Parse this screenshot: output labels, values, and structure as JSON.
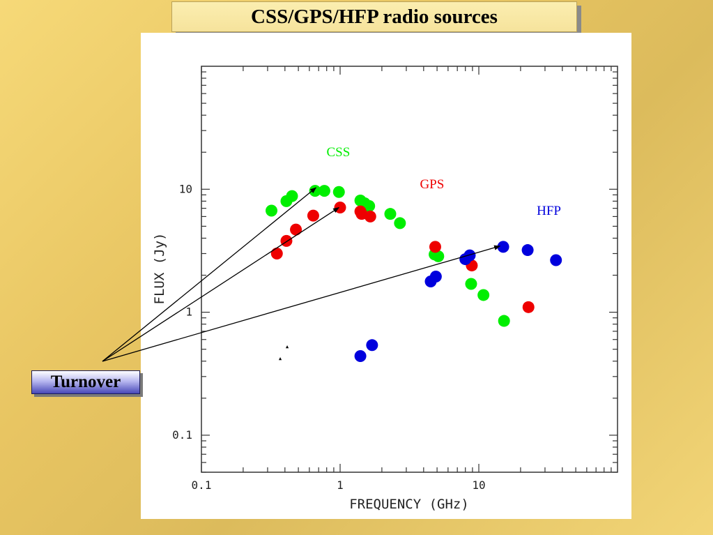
{
  "slide": {
    "title": "CSS/GPS/HFP radio sources",
    "callout": "Turnover"
  },
  "colors": {
    "CSS": "#00ee00",
    "GPS": "#ee0000",
    "HFP": "#0000dd",
    "arrow": "#000000"
  },
  "chart_data": {
    "type": "scatter",
    "xlabel": "FREQUENCY (GHz)",
    "ylabel": "FLUX (Jy)",
    "xscale": "log",
    "yscale": "log",
    "xlim": [
      0.1,
      100
    ],
    "ylim": [
      0.05,
      100
    ],
    "xticklabels": [
      {
        "v": 0.1,
        "t": "0.1"
      },
      {
        "v": 1,
        "t": "1"
      },
      {
        "v": 10,
        "t": "10"
      }
    ],
    "yticklabels": [
      {
        "v": 0.1,
        "t": "0.1"
      },
      {
        "v": 1,
        "t": "1"
      },
      {
        "v": 10,
        "t": "10"
      }
    ],
    "grid": false,
    "series": [
      {
        "name": "CSS",
        "color": "#00ee00",
        "points": [
          [
            0.32,
            6.7
          ],
          [
            0.41,
            8.0
          ],
          [
            0.45,
            8.8
          ],
          [
            0.66,
            9.7
          ],
          [
            0.77,
            9.7
          ],
          [
            0.98,
            9.5
          ],
          [
            1.4,
            8.1
          ],
          [
            1.5,
            7.7
          ],
          [
            1.62,
            7.3
          ],
          [
            2.3,
            6.3
          ],
          [
            2.7,
            5.3
          ],
          [
            4.8,
            2.95
          ],
          [
            5.1,
            2.85
          ],
          [
            8.8,
            1.7
          ],
          [
            10.8,
            1.38
          ],
          [
            15.2,
            0.85
          ]
        ]
      },
      {
        "name": "GPS",
        "color": "#ee0000",
        "points": [
          [
            0.35,
            3.0
          ],
          [
            0.41,
            3.8
          ],
          [
            0.48,
            4.7
          ],
          [
            0.64,
            6.1
          ],
          [
            1.0,
            7.1
          ],
          [
            1.4,
            6.6
          ],
          [
            1.43,
            6.3
          ],
          [
            1.65,
            6.0
          ],
          [
            4.85,
            3.4
          ],
          [
            8.9,
            2.4
          ],
          [
            22.8,
            1.1
          ]
        ]
      },
      {
        "name": "HFP",
        "color": "#0000dd",
        "points": [
          [
            1.4,
            0.44
          ],
          [
            1.7,
            0.54
          ],
          [
            4.5,
            1.78
          ],
          [
            4.9,
            1.95
          ],
          [
            8.0,
            2.7
          ],
          [
            8.6,
            2.9
          ],
          [
            15.0,
            3.4
          ],
          [
            22.5,
            3.2
          ],
          [
            36.0,
            2.65
          ]
        ]
      }
    ],
    "annotations": [
      {
        "text": "CSS",
        "x": 0.97,
        "y": 18.5,
        "color": "#00ee00"
      },
      {
        "text": "GPS",
        "x": 4.6,
        "y": 10.2,
        "color": "#ee0000"
      },
      {
        "text": "HFP",
        "x": 32.0,
        "y": 6.2,
        "color": "#0000dd"
      }
    ],
    "arrows_to": [
      {
        "x": 0.67,
        "y": 10.3
      },
      {
        "x": 0.98,
        "y": 7.1
      },
      {
        "x": 14.2,
        "y": 3.45
      }
    ]
  }
}
